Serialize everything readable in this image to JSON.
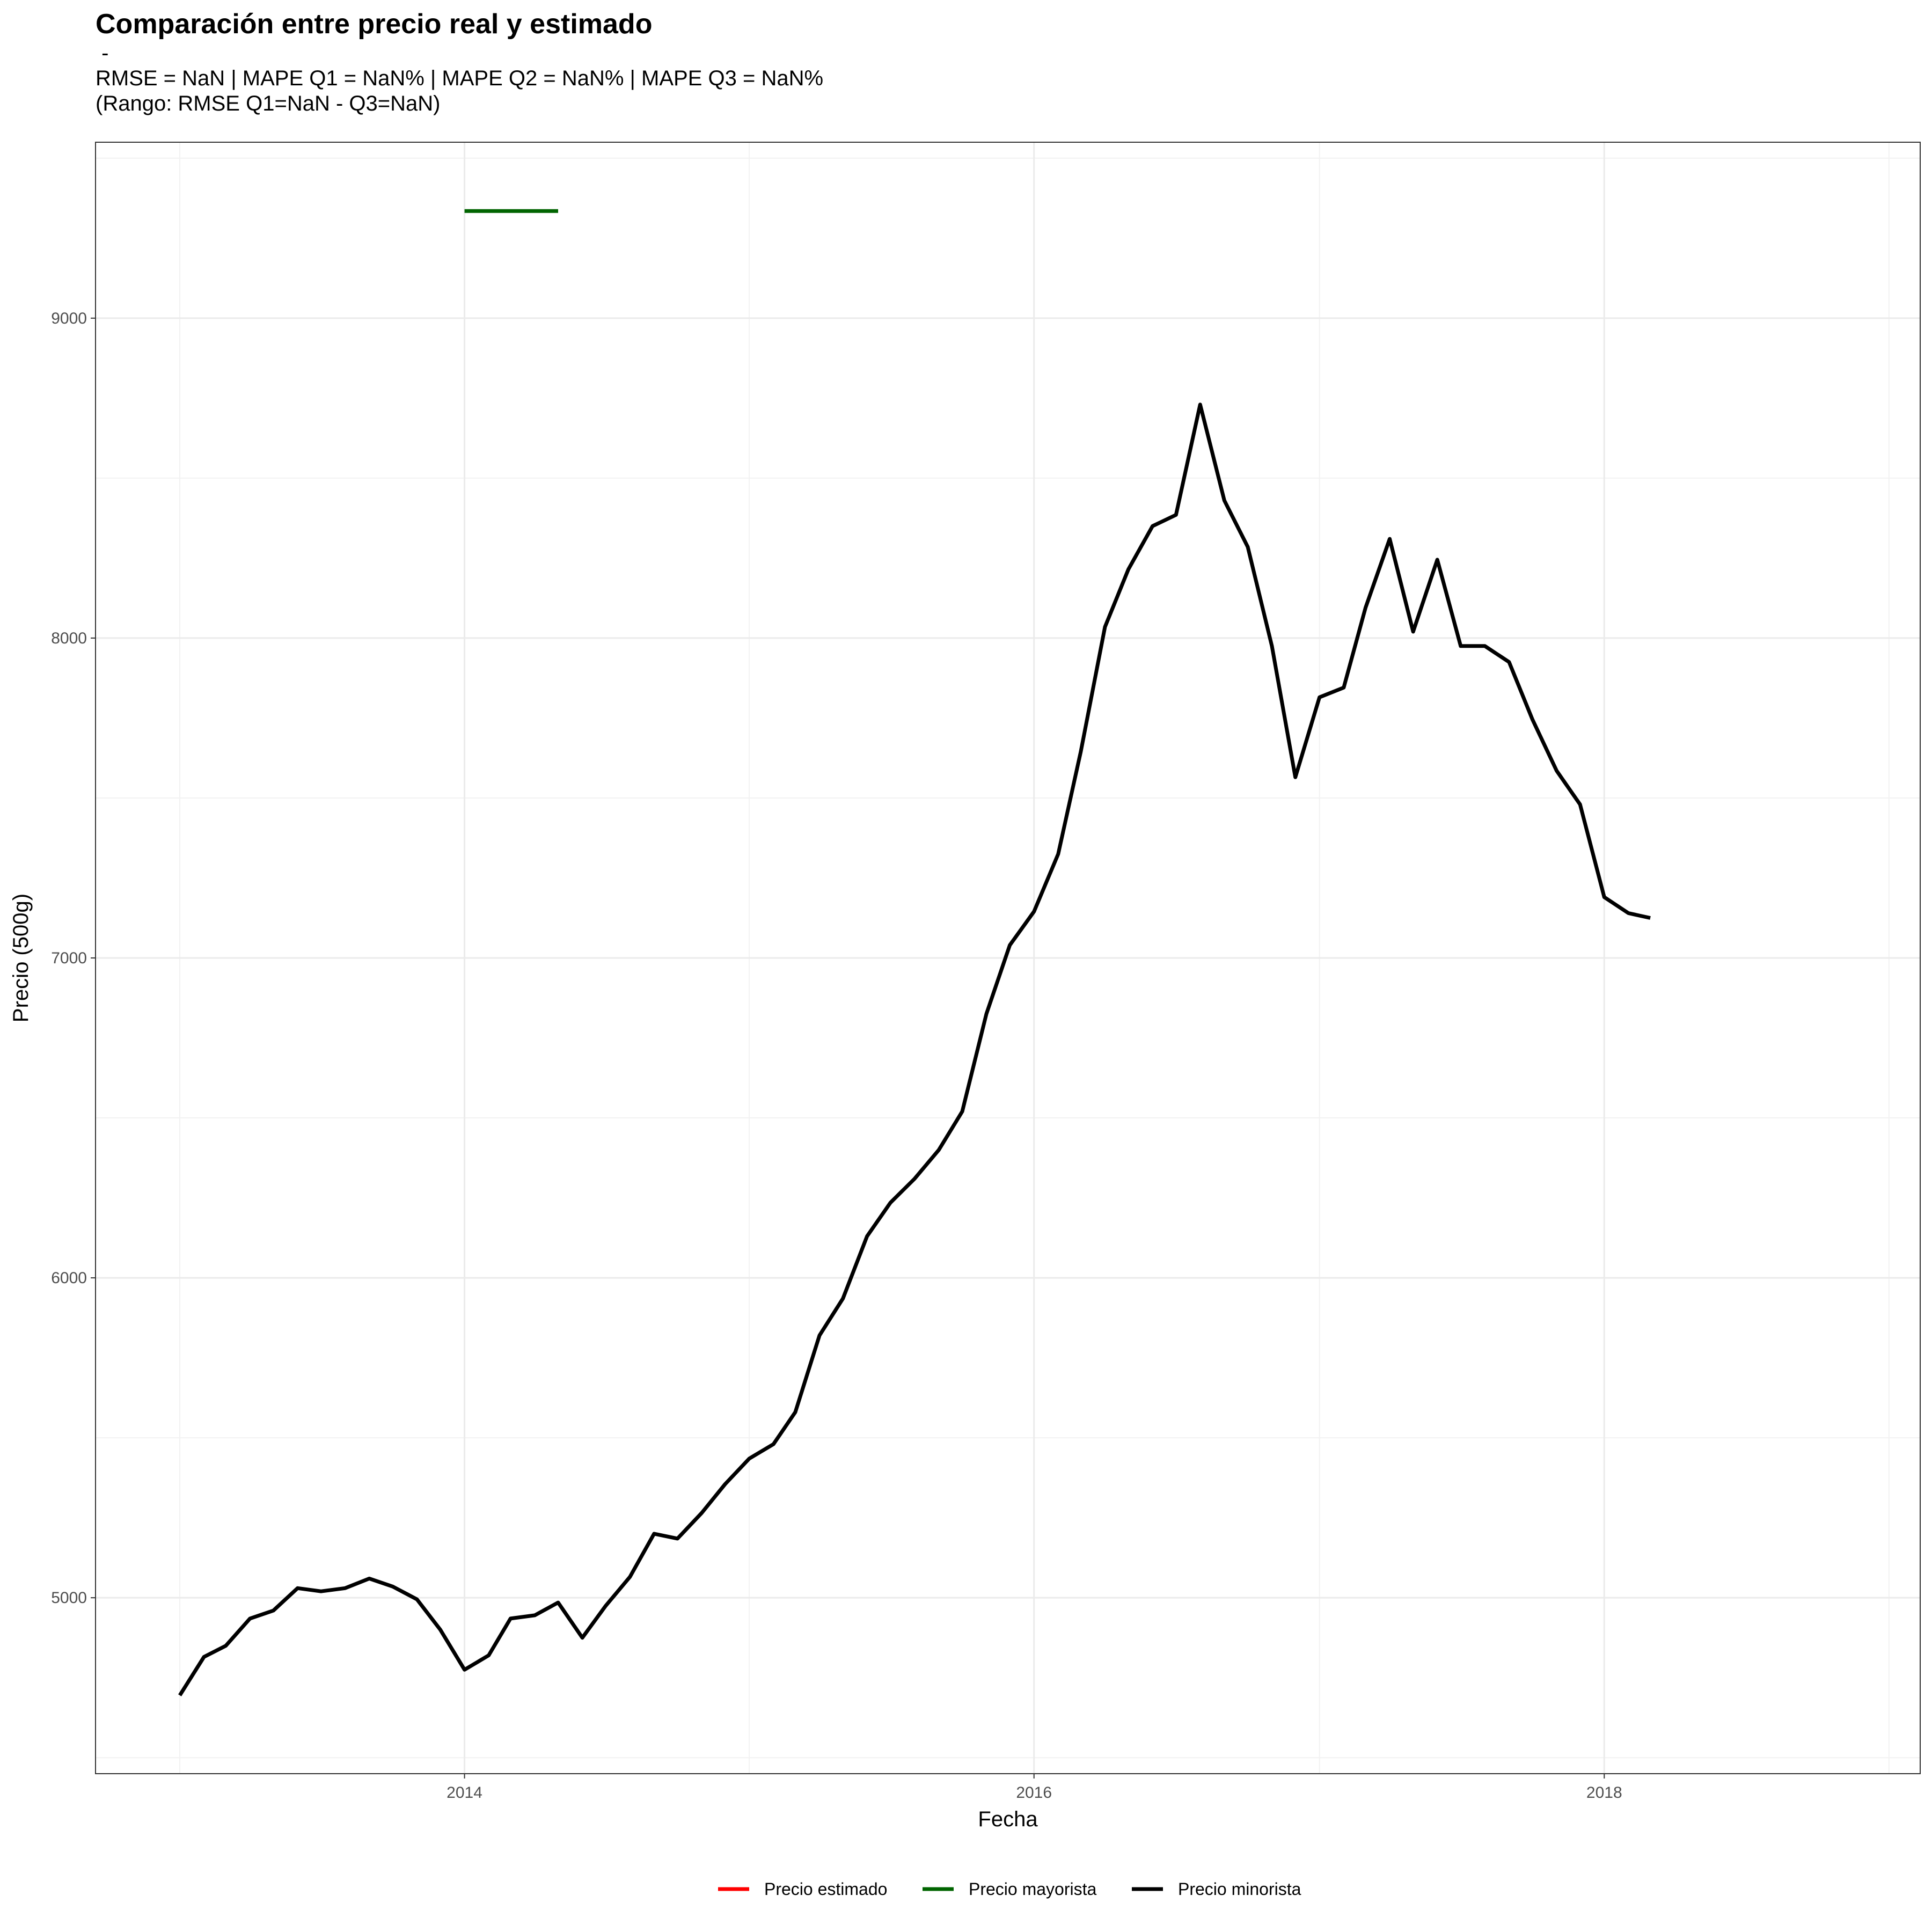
{
  "chart_data": {
    "type": "line",
    "title": "Comparación entre precio real y estimado",
    "subtitle_lines": [
      " -",
      "RMSE = NaN | MAPE Q1 = NaN% | MAPE Q2 = NaN% | MAPE Q3 = NaN%",
      "(Rango: RMSE Q1=NaN - Q3=NaN)"
    ],
    "xlabel": "Fecha",
    "ylabel": "Precio (500g)",
    "x_ticks": [
      "2014",
      "2016",
      "2018"
    ],
    "y_ticks": [
      5000,
      6000,
      7000,
      8000,
      9000
    ],
    "xlim": [
      "2012-09-15",
      "2019-02-10"
    ],
    "ylim": [
      4450,
      9550
    ],
    "grid": true,
    "legend_position": "bottom",
    "legend": [
      {
        "label": "Precio estimado",
        "color": "#ff0000"
      },
      {
        "label": "Precio mayorista",
        "color": "#006400"
      },
      {
        "label": "Precio minorista",
        "color": "#000000"
      }
    ],
    "series": [
      {
        "name": "Precio mayorista",
        "color": "#006400",
        "x": [
          "2014-01-01",
          "2014-02-01",
          "2014-03-01",
          "2014-04-01",
          "2014-05-01"
        ],
        "y": [
          9335,
          9335,
          9335,
          9335,
          9335
        ]
      },
      {
        "name": "Precio minorista",
        "color": "#000000",
        "x": [
          "2013-01-01",
          "2013-02-01",
          "2013-03-01",
          "2013-04-01",
          "2013-05-01",
          "2013-06-01",
          "2013-07-01",
          "2013-08-01",
          "2013-09-01",
          "2013-10-01",
          "2013-11-01",
          "2013-12-01",
          "2014-01-01",
          "2014-02-01",
          "2014-03-01",
          "2014-04-01",
          "2014-05-01",
          "2014-06-01",
          "2014-07-01",
          "2014-08-01",
          "2014-09-01",
          "2014-10-01",
          "2014-11-01",
          "2014-12-01",
          "2015-01-01",
          "2015-02-01",
          "2015-03-01",
          "2015-04-01",
          "2015-05-01",
          "2015-06-01",
          "2015-07-01",
          "2015-08-01",
          "2015-09-01",
          "2015-10-01",
          "2015-11-01",
          "2015-12-01",
          "2016-01-01",
          "2016-02-01",
          "2016-03-01",
          "2016-04-01",
          "2016-05-01",
          "2016-06-01",
          "2016-07-01",
          "2016-08-01",
          "2016-09-01",
          "2016-10-01",
          "2016-11-01",
          "2016-12-01",
          "2017-01-01",
          "2017-02-01",
          "2017-03-01",
          "2017-04-01",
          "2017-05-01",
          "2017-06-01",
          "2017-07-01",
          "2017-08-01",
          "2017-09-01",
          "2017-10-01",
          "2017-11-01",
          "2017-12-01",
          "2018-01-01",
          "2018-02-01",
          "2018-03-01"
        ],
        "y": [
          4695,
          4815,
          4850,
          4935,
          4960,
          5030,
          5020,
          5030,
          5060,
          5035,
          4995,
          4900,
          4775,
          4820,
          4935,
          4945,
          4985,
          4875,
          4975,
          5065,
          5200,
          5185,
          5265,
          5355,
          5435,
          5480,
          5580,
          5820,
          5935,
          6130,
          6235,
          6310,
          6400,
          6520,
          6825,
          7040,
          7145,
          7325,
          7645,
          8035,
          8215,
          8350,
          8385,
          8730,
          8430,
          8285,
          7975,
          7565,
          7815,
          7845,
          8095,
          8310,
          8020,
          8245,
          7975,
          7975,
          7925,
          7745,
          7585,
          7480,
          7190,
          7140,
          7125
        ]
      }
    ]
  }
}
